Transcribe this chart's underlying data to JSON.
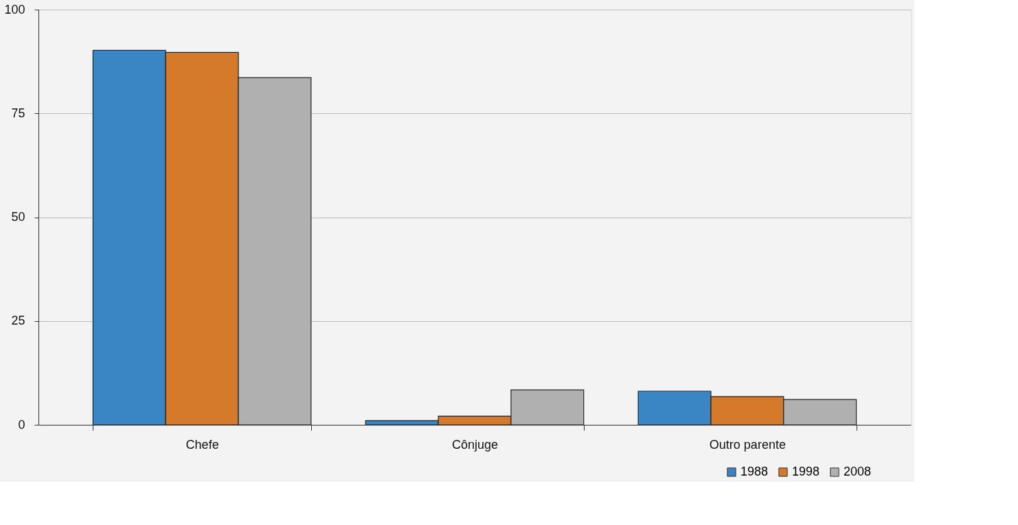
{
  "chart_data": {
    "type": "bar",
    "categories": [
      "Chefe",
      "Cônjuge",
      "Outro parente"
    ],
    "series": [
      {
        "name": "1988",
        "color": "#3a86c4",
        "values": [
          90.2,
          1.0,
          8.1
        ]
      },
      {
        "name": "1998",
        "color": "#d47a2a",
        "values": [
          89.7,
          2.1,
          6.8
        ]
      },
      {
        "name": "2008",
        "color": "#b0b0b0",
        "values": [
          83.6,
          8.4,
          6.1
        ]
      }
    ],
    "ylim": [
      0,
      100
    ],
    "yticks": [
      0,
      25,
      50,
      75,
      100
    ],
    "grid": "y",
    "legend": "bottom right"
  }
}
